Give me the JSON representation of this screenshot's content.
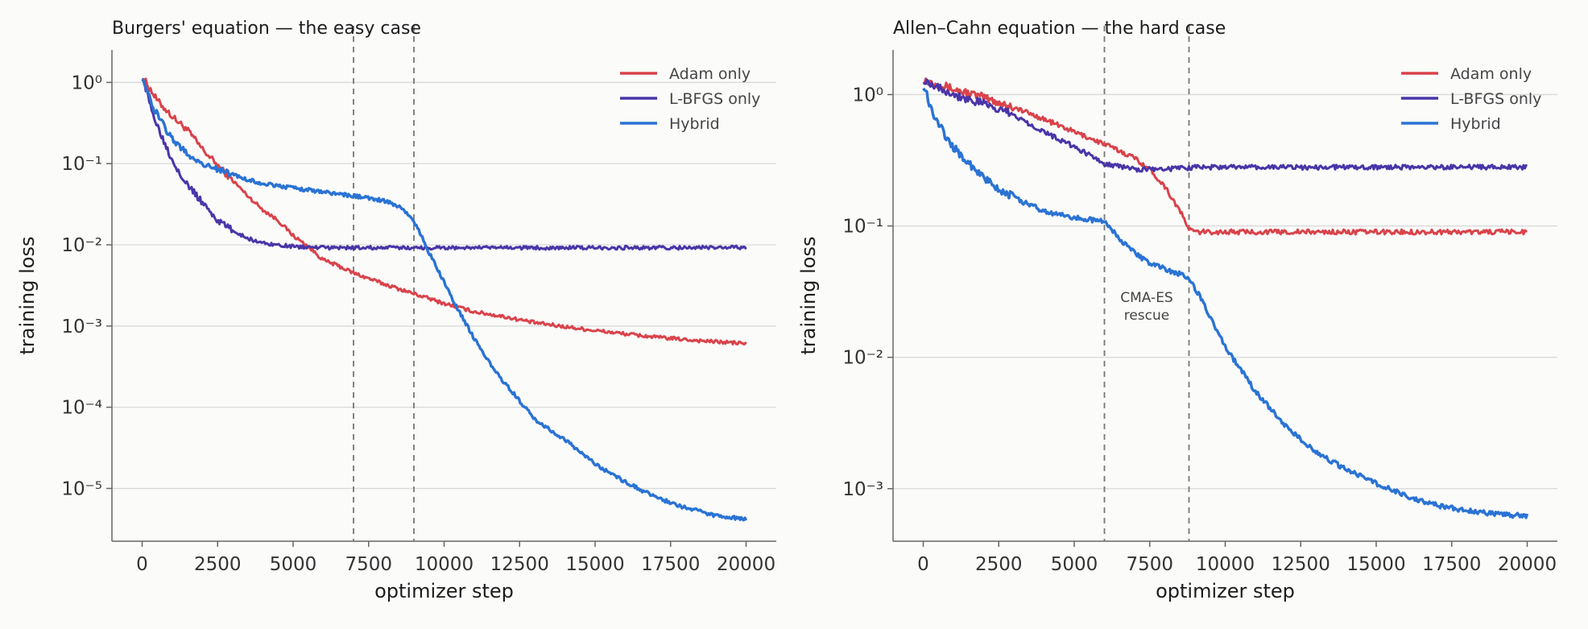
{
  "chart_data": [
    {
      "type": "line",
      "title": "Burgers' equation — the easy case",
      "xlabel": "optimizer step",
      "ylabel": "training loss",
      "yscale": "log",
      "xlim": [
        -1000,
        21000
      ],
      "ylim_exp": [
        -5.65,
        0.4
      ],
      "xticks": [
        "0",
        "2500",
        "5000",
        "7500",
        "10000",
        "12500",
        "15000",
        "17500",
        "20000"
      ],
      "yticks_exp": [
        0,
        -1,
        -2,
        -3,
        -4,
        -5
      ],
      "grid": "horizontal",
      "legend": "top-right",
      "vlines": [
        7000,
        9000
      ],
      "annotation": "",
      "series": [
        {
          "name": "Adam only",
          "color": "#d9434a",
          "x": [
            0,
            500,
            1000,
            1500,
            2000,
            2500,
            3000,
            3500,
            4000,
            4500,
            5000,
            5500,
            6000,
            6500,
            7000,
            8000,
            9000,
            10000,
            11000,
            12000,
            13000,
            14000,
            15000,
            16000,
            17000,
            18000,
            19000,
            20000
          ],
          "y": [
            1.2,
            0.6,
            0.38,
            0.26,
            0.15,
            0.095,
            0.062,
            0.04,
            0.027,
            0.02,
            0.013,
            0.0095,
            0.0065,
            0.0055,
            0.0045,
            0.0033,
            0.0025,
            0.0019,
            0.0015,
            0.0013,
            0.0011,
            0.00098,
            0.00088,
            0.0008,
            0.00073,
            0.00068,
            0.00064,
            0.00061
          ]
        },
        {
          "name": "L-BFGS only",
          "color": "#4a35a8",
          "x": [
            0,
            250,
            500,
            750,
            1000,
            1500,
            2000,
            2500,
            3000,
            3500,
            4000,
            5000,
            6000,
            8000,
            10000,
            12000,
            14000,
            16000,
            18000,
            20000
          ],
          "y": [
            1.2,
            0.55,
            0.3,
            0.18,
            0.11,
            0.055,
            0.033,
            0.02,
            0.015,
            0.012,
            0.0105,
            0.0095,
            0.0092,
            0.0092,
            0.0092,
            0.0092,
            0.0092,
            0.0092,
            0.0092,
            0.0093
          ]
        },
        {
          "name": "Hybrid",
          "color": "#2a73d4",
          "x": [
            0,
            300,
            700,
            1000,
            1500,
            2000,
            2500,
            3000,
            3500,
            4000,
            5000,
            6000,
            7000,
            8000,
            8500,
            8900,
            9200,
            9500,
            10000,
            10500,
            11000,
            11500,
            12000,
            12500,
            13000,
            14000,
            15000,
            16000,
            17000,
            18000,
            19000,
            20000
          ],
          "y": [
            1.2,
            0.55,
            0.3,
            0.2,
            0.13,
            0.1,
            0.085,
            0.073,
            0.063,
            0.057,
            0.05,
            0.045,
            0.04,
            0.035,
            0.03,
            0.022,
            0.014,
            0.008,
            0.0035,
            0.0015,
            0.0007,
            0.00035,
            0.0002,
            0.00012,
            7e-05,
            4e-05,
            2e-05,
            1.2e-05,
            7.8e-06,
            5.8e-06,
            4.6e-06,
            4.2e-06
          ]
        }
      ]
    },
    {
      "type": "line",
      "title": "Allen–Cahn equation — the hard case",
      "xlabel": "optimizer step",
      "ylabel": "training loss",
      "yscale": "log",
      "xlim": [
        -1000,
        21000
      ],
      "ylim_exp": [
        -3.4,
        0.34
      ],
      "xticks": [
        "0",
        "2500",
        "5000",
        "7500",
        "10000",
        "12500",
        "15000",
        "17500",
        "20000"
      ],
      "yticks_exp": [
        0,
        -1,
        -2,
        -3
      ],
      "grid": "horizontal",
      "legend": "top-right",
      "vlines": [
        6000,
        8800
      ],
      "annotation": "CMA-ES\nrescue",
      "series": [
        {
          "name": "Adam only",
          "color": "#d9434a",
          "x": [
            0,
            500,
            1000,
            2000,
            3000,
            4000,
            5000,
            6000,
            7000,
            7500,
            8000,
            8500,
            8800,
            9000,
            10000,
            12000,
            14000,
            16000,
            18000,
            20000
          ],
          "y": [
            1.3,
            1.2,
            1.1,
            0.95,
            0.8,
            0.65,
            0.52,
            0.42,
            0.33,
            0.27,
            0.2,
            0.13,
            0.095,
            0.09,
            0.09,
            0.09,
            0.09,
            0.09,
            0.09,
            0.09
          ]
        },
        {
          "name": "L-BFGS only",
          "color": "#4a35a8",
          "x": [
            0,
            500,
            1000,
            2000,
            3000,
            4000,
            5000,
            6000,
            7000,
            8000,
            9000,
            10000,
            12000,
            14000,
            16000,
            18000,
            20000
          ],
          "y": [
            1.3,
            1.15,
            1.0,
            0.85,
            0.7,
            0.52,
            0.4,
            0.3,
            0.27,
            0.27,
            0.28,
            0.28,
            0.28,
            0.28,
            0.28,
            0.28,
            0.28
          ]
        },
        {
          "name": "Hybrid",
          "color": "#2a73d4",
          "x": [
            0,
            300,
            700,
            1000,
            1500,
            2000,
            2500,
            3000,
            3500,
            4000,
            4500,
            5000,
            5500,
            6000,
            6500,
            7000,
            7500,
            8000,
            8500,
            8800,
            9200,
            9600,
            10000,
            11000,
            12000,
            13000,
            14000,
            15000,
            16000,
            17000,
            18000,
            19000,
            20000
          ],
          "y": [
            1.2,
            0.75,
            0.5,
            0.4,
            0.3,
            0.23,
            0.19,
            0.165,
            0.145,
            0.13,
            0.122,
            0.115,
            0.112,
            0.108,
            0.08,
            0.062,
            0.052,
            0.047,
            0.043,
            0.04,
            0.028,
            0.018,
            0.012,
            0.0055,
            0.003,
            0.0019,
            0.0014,
            0.0011,
            0.00088,
            0.00075,
            0.00068,
            0.00064,
            0.00062
          ]
        }
      ]
    }
  ]
}
